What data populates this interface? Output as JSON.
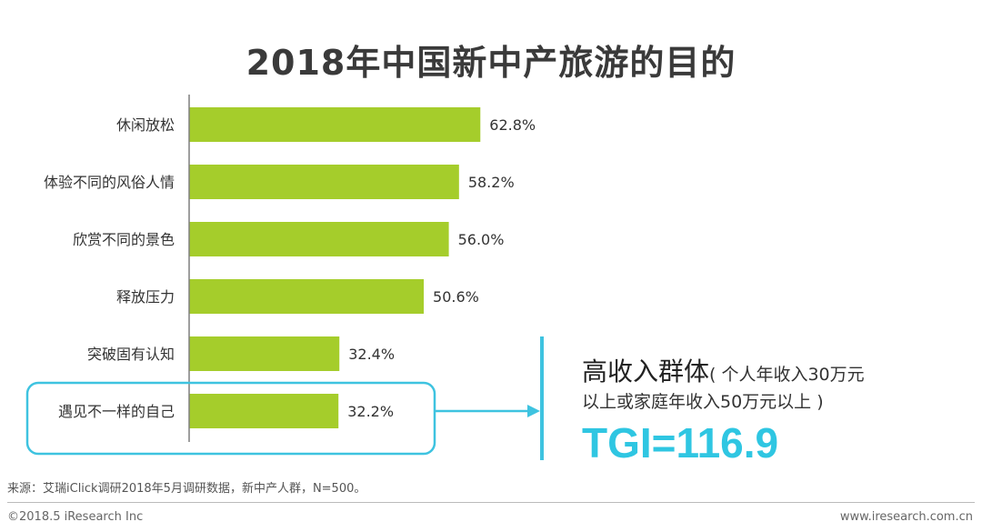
{
  "title": "2018年中国新中产旅游的目的",
  "chart_data": {
    "type": "bar",
    "orientation": "horizontal",
    "title": "2018年中国新中产旅游的目的",
    "categories": [
      "休闲放松",
      "体验不同的风俗人情",
      "欣赏不同的景色",
      "释放压力",
      "突破固有认知",
      "遇见不一样的自己"
    ],
    "values": [
      62.8,
      58.2,
      56.0,
      50.6,
      32.4,
      32.2
    ],
    "value_labels": [
      "62.8%",
      "58.2%",
      "56.0%",
      "50.6%",
      "32.4%",
      "32.2%"
    ],
    "unit": "%",
    "xlim": [
      0,
      100
    ],
    "bar_color": "#a5cd2b",
    "highlight_category": "遇见不一样的自己",
    "highlight_color": "#3ec3e0"
  },
  "callout": {
    "group_label": "高收入群体",
    "note_line1": "( 个人年收入30万元",
    "note_line2": "以上或家庭年收入50万元以上 )",
    "tgi": "TGI=116.9"
  },
  "footer": {
    "source": "来源：艾瑞iClick调研2018年5月调研数据，新中产人群，N=500。",
    "copyright": "©2018.5 iResearch Inc",
    "website": "www.iresearch.com.cn"
  }
}
